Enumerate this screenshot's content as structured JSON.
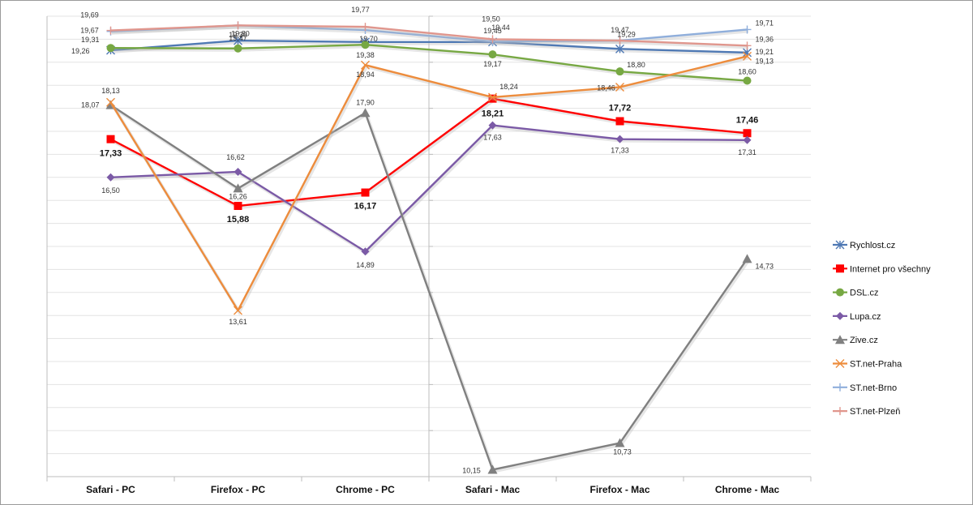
{
  "chart_data": {
    "type": "line",
    "title": "",
    "xlabel": "",
    "ylabel": "",
    "categories": [
      "Safari - PC",
      "Firefox - PC",
      "Chrome - PC",
      "Safari - Mac",
      "Firefox - Mac",
      "Chrome - Mac"
    ],
    "ylim": [
      10,
      20
    ],
    "grid": true,
    "legend_position": "right",
    "series": [
      {
        "name": "Rychlost.cz",
        "color": "#4f79b4",
        "marker": "star",
        "values": [
          19.26,
          19.47,
          19.44,
          19.44,
          19.29,
          19.21
        ],
        "labels": [
          "19,26",
          "19,47",
          "",
          "19,44",
          "19,29",
          "19,21"
        ],
        "bold": false
      },
      {
        "name": "Internet pro všechny",
        "color": "#ff0000",
        "marker": "square",
        "values": [
          17.33,
          15.88,
          16.17,
          18.21,
          17.72,
          17.46
        ],
        "labels": [
          "17,33",
          "15,88",
          "16,17",
          "18,21",
          "17,72",
          "17,46"
        ],
        "bold": true
      },
      {
        "name": "DSL.cz",
        "color": "#77a843",
        "marker": "circle",
        "values": [
          19.31,
          19.3,
          19.38,
          19.17,
          18.8,
          18.6
        ],
        "labels": [
          "19,31",
          "19,30",
          "19,38",
          "19,17",
          "18,80",
          "18,60"
        ],
        "bold": false
      },
      {
        "name": "Lupa.cz",
        "color": "#7b5aa6",
        "marker": "diamond",
        "values": [
          16.5,
          16.62,
          14.89,
          17.63,
          17.33,
          17.31
        ],
        "labels": [
          "16,50",
          "16,62",
          "14,89",
          "17,63",
          "17,33",
          "17,31"
        ],
        "bold": false
      },
      {
        "name": "Zive.cz",
        "color": "#808080",
        "marker": "triangle",
        "values": [
          18.07,
          16.26,
          17.9,
          10.15,
          10.73,
          14.73
        ],
        "labels": [
          "18,07",
          "16,26",
          "17,90",
          "10,15",
          "10,73",
          "14,73"
        ],
        "bold": false
      },
      {
        "name": "ST.net-Praha",
        "color": "#ed8c3c",
        "marker": "x",
        "values": [
          18.13,
          13.61,
          18.94,
          18.24,
          18.46,
          19.13
        ],
        "labels": [
          "18,13",
          "13,61",
          "18,94",
          "18,24",
          "18,46",
          "19,13"
        ],
        "bold": false
      },
      {
        "name": "ST.net-Brno",
        "color": "#8faedb",
        "marker": "plus",
        "values": [
          19.67,
          19.8,
          19.7,
          19.45,
          19.47,
          19.71
        ],
        "labels": [
          "19,67",
          "19,80",
          "19,70",
          "19,45",
          "19,47",
          "19,71"
        ],
        "bold": false
      },
      {
        "name": "ST.net-Plzeň",
        "color": "#e0968d",
        "marker": "plus",
        "values": [
          19.69,
          19.8,
          19.77,
          19.5,
          19.47,
          19.36
        ],
        "labels": [
          "19,69",
          "",
          "19,77",
          "19,50",
          "",
          "19,36"
        ],
        "bold": false
      }
    ]
  }
}
